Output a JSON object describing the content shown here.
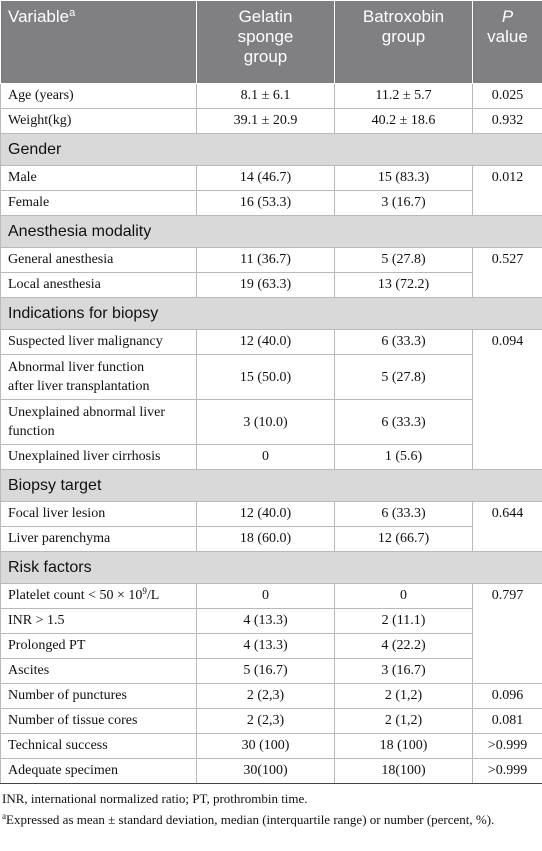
{
  "header": {
    "variable": "Variable",
    "variable_sup": "a",
    "gelatin_line1": "Gelatin",
    "gelatin_line2": "sponge",
    "gelatin_line3": "group",
    "batroxobin_line1": "Batroxobin",
    "batroxobin_line2": "group",
    "p_line1": "P",
    "p_line2": "value"
  },
  "top_rows": [
    {
      "label": "Age (years)",
      "gelatin": "8.1 ± 6.1",
      "batroxobin": "11.2 ± 5.7",
      "p": "0.025"
    },
    {
      "label": "Weight(kg)",
      "gelatin": "39.1 ± 20.9",
      "batroxobin": "40.2 ± 18.6",
      "p": "0.932"
    }
  ],
  "sections": {
    "gender": "Gender",
    "anesthesia": "Anesthesia modality",
    "indications": "Indications for biopsy",
    "target": "Biopsy target",
    "risk": "Risk factors"
  },
  "gender": {
    "p": "0.012",
    "rows": [
      {
        "label": "Male",
        "gelatin": "14 (46.7)",
        "batroxobin": "15 (83.3)"
      },
      {
        "label": "Female",
        "gelatin": "16 (53.3)",
        "batroxobin": "3 (16.7)"
      }
    ]
  },
  "anesthesia": {
    "p": "0.527",
    "rows": [
      {
        "label": "General anesthesia",
        "gelatin": "11 (36.7)",
        "batroxobin": "5 (27.8)"
      },
      {
        "label": "Local anesthesia",
        "gelatin": "19 (63.3)",
        "batroxobin": "13 (72.2)"
      }
    ]
  },
  "indications": {
    "p": "0.094",
    "rows": [
      {
        "label": "Suspected liver malignancy",
        "gelatin": "12 (40.0)",
        "batroxobin": "6 (33.3)"
      },
      {
        "label_line1": "Abnormal liver function",
        "label_line2": "after liver transplantation",
        "gelatin": "15 (50.0)",
        "batroxobin": "5 (27.8)"
      },
      {
        "label_line1": "Unexplained abnormal liver",
        "label_line2": "function",
        "gelatin": "3 (10.0)",
        "batroxobin": "6 (33.3)"
      },
      {
        "label": "Unexplained liver cirrhosis",
        "gelatin": "0",
        "batroxobin": "1 (5.6)"
      }
    ]
  },
  "target": {
    "p": "0.644",
    "rows": [
      {
        "label": "Focal liver lesion",
        "gelatin": "12 (40.0)",
        "batroxobin": "6 (33.3)"
      },
      {
        "label": "Liver parenchyma",
        "gelatin": "18 (60.0)",
        "batroxobin": "12 (66.7)"
      }
    ]
  },
  "risk": {
    "p": "0.797",
    "platelet_label": "Platelet count < 50 × 10",
    "platelet_sup": "9",
    "platelet_unit": "/L",
    "platelet_gelatin": "0",
    "platelet_batroxobin": "0",
    "rows": [
      {
        "label": "INR > 1.5",
        "gelatin": "4 (13.3)",
        "batroxobin": "2 (11.1)"
      },
      {
        "label": "Prolonged PT",
        "gelatin": "4 (13.3)",
        "batroxobin": "4 (22.2)"
      },
      {
        "label": "Ascites",
        "gelatin": "5 (16.7)",
        "batroxobin": "3 (16.7)"
      }
    ]
  },
  "bottom_rows": [
    {
      "label": "Number of punctures",
      "gelatin": "2 (2,3)",
      "batroxobin": "2 (1,2)",
      "p": "0.096"
    },
    {
      "label": "Number of tissue cores",
      "gelatin": "2 (2,3)",
      "batroxobin": "2 (1,2)",
      "p": "0.081"
    },
    {
      "label": "Technical success",
      "gelatin": "30 (100)",
      "batroxobin": "18 (100)",
      "p": ">0.999"
    },
    {
      "label": "Adequate specimen",
      "gelatin": "30(100)",
      "batroxobin": "18(100)",
      "p": ">0.999"
    }
  ],
  "notes": {
    "abbrev": "INR, international normalized ratio; PT, prothrombin time.",
    "footnote_sup": "a",
    "footnote": "Expressed as mean ± standard deviation, median (interquartile range) or number (percent, %)."
  }
}
